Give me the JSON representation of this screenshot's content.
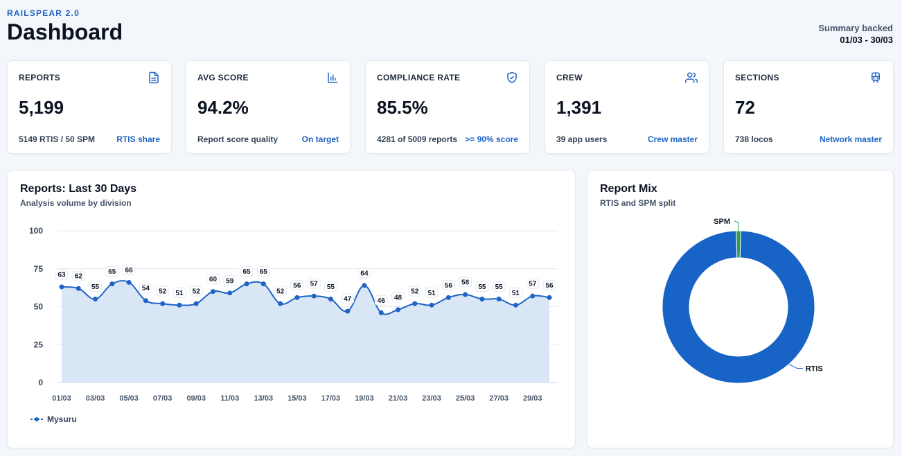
{
  "header": {
    "brand": "RAILSPEAR 2.0",
    "title": "Dashboard",
    "summary_label": "Summary backed",
    "summary_range": "01/03 - 30/03"
  },
  "cards": [
    {
      "title": "REPORTS",
      "value": "5,199",
      "sub": "5149 RTIS / 50 SPM",
      "link": "RTIS share",
      "icon": "document-icon"
    },
    {
      "title": "AVG SCORE",
      "value": "94.2%",
      "sub": "Report score quality",
      "link": "On target",
      "icon": "bar-chart-icon"
    },
    {
      "title": "COMPLIANCE RATE",
      "value": "85.5%",
      "sub": "4281 of 5009 reports",
      "link": ">= 90% score",
      "icon": "shield-check-icon"
    },
    {
      "title": "CREW",
      "value": "1,391",
      "sub": "39 app users",
      "link": "Crew master",
      "icon": "users-icon"
    },
    {
      "title": "SECTIONS",
      "value": "72",
      "sub": "738 locos",
      "link": "Network master",
      "icon": "train-icon"
    }
  ],
  "line_panel": {
    "title": "Reports: Last 30 Days",
    "subtitle": "Analysis volume by division"
  },
  "donut_panel": {
    "title": "Report Mix",
    "subtitle": "RTIS and SPM split"
  },
  "colors": {
    "accent": "#1d64c4",
    "line": "#1f63c5",
    "area": "#d9e6f6",
    "donut_rtis": "#1763c6",
    "donut_spm": "#2e9e4f"
  },
  "chart_data": [
    {
      "type": "line",
      "title": "Reports: Last 30 Days",
      "subtitle": "Analysis volume by division",
      "x": [
        "01/03",
        "02/03",
        "03/03",
        "04/03",
        "05/03",
        "06/03",
        "07/03",
        "08/03",
        "09/03",
        "10/03",
        "11/03",
        "12/03",
        "13/03",
        "14/03",
        "15/03",
        "16/03",
        "17/03",
        "18/03",
        "19/03",
        "20/03",
        "21/03",
        "22/03",
        "23/03",
        "24/03",
        "25/03",
        "26/03",
        "27/03",
        "28/03",
        "29/03",
        "30/03"
      ],
      "x_tick_labels": [
        "01/03",
        "03/03",
        "05/03",
        "07/03",
        "09/03",
        "11/03",
        "13/03",
        "15/03",
        "17/03",
        "19/03",
        "21/03",
        "23/03",
        "25/03",
        "27/03",
        "29/03"
      ],
      "series": [
        {
          "name": "Mysuru",
          "values": [
            63,
            62,
            55,
            65,
            66,
            54,
            52,
            51,
            52,
            60,
            59,
            65,
            65,
            52,
            56,
            57,
            55,
            47,
            64,
            46,
            48,
            52,
            51,
            56,
            58,
            55,
            55,
            51,
            57,
            56
          ]
        }
      ],
      "ylim": [
        0,
        100
      ],
      "yticks": [
        0,
        25,
        50,
        75,
        100
      ],
      "grid": true,
      "legend": "bottom-left"
    },
    {
      "type": "pie",
      "title": "Report Mix",
      "subtitle": "RTIS and SPM split",
      "labels": [
        "RTIS",
        "SPM"
      ],
      "values": [
        5149,
        50
      ],
      "donut": true
    }
  ]
}
